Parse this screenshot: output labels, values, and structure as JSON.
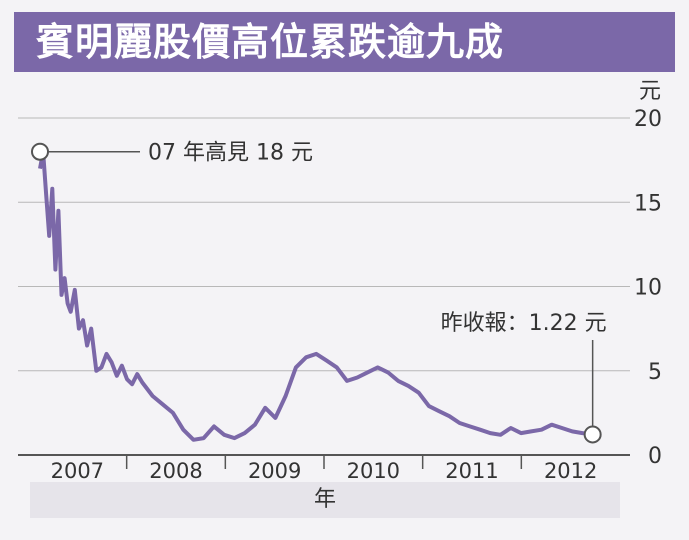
{
  "chart_data": {
    "type": "line",
    "title": "賓明麗股價高位累跌逾九成",
    "xlabel": "年",
    "ylabel": "元",
    "ylim": [
      0,
      20
    ],
    "y_ticks": [
      0,
      5,
      10,
      15,
      20
    ],
    "x_ticks": [
      "2007",
      "2008",
      "2009",
      "2010",
      "2011",
      "2012"
    ],
    "grid": true,
    "colors": {
      "line": "#7b68a8",
      "title_bg": "#7b68a8",
      "grid": "#b8b8b8"
    },
    "annotations": [
      {
        "text": "07 年高見 18 元",
        "x": 2007.0,
        "y": 18
      },
      {
        "text": "昨收報：1.22 元",
        "x": 2012.4,
        "y": 1.22
      }
    ],
    "series": [
      {
        "x": [
          2007.0,
          2007.03,
          2007.06,
          2007.09,
          2007.12,
          2007.15,
          2007.18,
          2007.21,
          2007.24,
          2007.27,
          2007.3,
          2007.34,
          2007.38,
          2007.42,
          2007.46,
          2007.5,
          2007.55,
          2007.6,
          2007.65,
          2007.7,
          2007.75,
          2007.8,
          2007.85,
          2007.9,
          2007.95,
          2008.0,
          2008.1,
          2008.2,
          2008.3,
          2008.4,
          2008.5,
          2008.6,
          2008.7,
          2008.8,
          2008.9,
          2009.0,
          2009.1,
          2009.2,
          2009.3,
          2009.4,
          2009.5,
          2009.6,
          2009.7,
          2009.8,
          2009.9,
          2010.0,
          2010.1,
          2010.2,
          2010.3,
          2010.4,
          2010.5,
          2010.6,
          2010.7,
          2010.8,
          2010.9,
          2011.0,
          2011.1,
          2011.2,
          2011.3,
          2011.4,
          2011.5,
          2011.6,
          2011.7,
          2011.8,
          2011.9,
          2012.0,
          2012.1,
          2012.2,
          2012.3,
          2012.4
        ],
        "values": [
          17.0,
          18.0,
          15.5,
          13.0,
          15.8,
          11.0,
          14.5,
          9.5,
          10.5,
          9.0,
          8.5,
          9.8,
          7.5,
          8.0,
          6.5,
          7.5,
          5.0,
          5.2,
          6.0,
          5.5,
          4.7,
          5.3,
          4.5,
          4.2,
          4.8,
          4.3,
          3.5,
          3.0,
          2.5,
          1.5,
          0.9,
          1.0,
          1.7,
          1.2,
          1.0,
          1.3,
          1.8,
          2.8,
          2.2,
          3.5,
          5.2,
          5.8,
          6.0,
          5.6,
          5.2,
          4.4,
          4.6,
          4.9,
          5.2,
          4.9,
          4.4,
          4.1,
          3.7,
          2.9,
          2.6,
          2.3,
          1.9,
          1.7,
          1.5,
          1.3,
          1.2,
          1.6,
          1.3,
          1.4,
          1.5,
          1.8,
          1.6,
          1.4,
          1.3,
          1.22
        ]
      }
    ]
  }
}
